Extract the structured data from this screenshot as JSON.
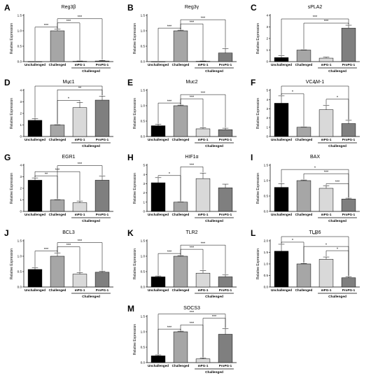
{
  "figure": {
    "categories": [
      "Unchallenged",
      "Challenged",
      "mPG-1",
      "ProPG-1"
    ],
    "group_label": "Challenged",
    "bar_colors": [
      "#000000",
      "#a6a6a6",
      "#d9d9d9",
      "#7f7f7f"
    ]
  },
  "chart_data": [
    {
      "letter": "A",
      "type": "bar",
      "title": "Reg3β",
      "ylabel": "Relative Expression",
      "ylim": [
        0,
        1.5
      ],
      "yticks": [
        0.0,
        0.5,
        1.0,
        1.5
      ],
      "tick_decimals": 1,
      "values": [
        0.0,
        1.0,
        0.01,
        0.02
      ],
      "errors": [
        0,
        0.05,
        0.01,
        0.02
      ],
      "significance": [
        {
          "from": 0,
          "to": 1,
          "label": "***"
        },
        {
          "from": 1,
          "to": 2,
          "label": "***"
        },
        {
          "from": 1,
          "to": 3,
          "label": "***"
        }
      ]
    },
    {
      "letter": "B",
      "type": "bar",
      "title": "Reg3γ",
      "ylabel": "Relative Expression",
      "ylim": [
        0,
        1.5
      ],
      "yticks": [
        0.0,
        0.5,
        1.0,
        1.5
      ],
      "tick_decimals": 1,
      "values": [
        0.0,
        1.0,
        0.01,
        0.28
      ],
      "errors": [
        0,
        0.02,
        0.01,
        0.14
      ],
      "significance": [
        {
          "from": 0,
          "to": 1,
          "label": "***"
        },
        {
          "from": 1,
          "to": 2,
          "label": "***"
        },
        {
          "from": 1,
          "to": 3,
          "label": "***"
        }
      ]
    },
    {
      "letter": "C",
      "type": "bar",
      "title": "sPLA2",
      "ylabel": "Relative Expression",
      "ylim": [
        0,
        4
      ],
      "yticks": [
        0,
        1,
        2,
        3,
        4
      ],
      "tick_decimals": 0,
      "values": [
        0.35,
        1.0,
        0.3,
        2.9
      ],
      "errors": [
        0.15,
        0.02,
        0.08,
        0.25
      ],
      "significance": [
        {
          "from": 1,
          "to": 3,
          "label": "***"
        },
        {
          "from": 0,
          "to": 3,
          "label": "***"
        }
      ]
    },
    {
      "letter": "D",
      "type": "bar",
      "title": "Muc1",
      "ylabel": "Relative Expression",
      "ylim": [
        0,
        4
      ],
      "yticks": [
        0,
        1,
        2,
        3,
        4
      ],
      "tick_decimals": 0,
      "values": [
        1.4,
        1.0,
        2.5,
        3.15
      ],
      "errors": [
        0.15,
        0.02,
        0.45,
        0.35
      ],
      "significance": [
        {
          "from": 1,
          "to": 2,
          "label": "*"
        },
        {
          "from": 1,
          "to": 3,
          "label": "**"
        },
        {
          "from": 0,
          "to": 3,
          "label": "*"
        }
      ]
    },
    {
      "letter": "E",
      "type": "bar",
      "title": "Muc2",
      "ylabel": "Relative Expression",
      "ylim": [
        0,
        1.5
      ],
      "yticks": [
        0.0,
        0.5,
        1.0,
        1.5
      ],
      "tick_decimals": 1,
      "values": [
        0.35,
        1.0,
        0.25,
        0.22
      ],
      "errors": [
        0.05,
        0.02,
        0.03,
        0.05
      ],
      "significance": [
        {
          "from": 0,
          "to": 1,
          "label": "***"
        },
        {
          "from": 1,
          "to": 2,
          "label": "***"
        },
        {
          "from": 1,
          "to": 3,
          "label": "***"
        }
      ]
    },
    {
      "letter": "F",
      "type": "bar",
      "title": "VCAM-1",
      "ylabel": "Relative Expression",
      "ylim": [
        0,
        5
      ],
      "yticks": [
        0,
        1,
        2,
        3,
        4,
        5
      ],
      "tick_decimals": 0,
      "values": [
        3.6,
        1.0,
        2.9,
        1.4
      ],
      "errors": [
        0.8,
        0.02,
        0.45,
        0.35
      ],
      "significance": [
        {
          "from": 0,
          "to": 1,
          "label": "*"
        },
        {
          "from": 2,
          "to": 3,
          "label": "*"
        },
        {
          "from": 0,
          "to": 3,
          "label": "*"
        }
      ]
    },
    {
      "letter": "G",
      "type": "bar",
      "title": "EGR1",
      "ylabel": "Relative Expression",
      "ylim": [
        0,
        4
      ],
      "yticks": [
        0,
        1,
        2,
        3,
        4
      ],
      "tick_decimals": 0,
      "values": [
        2.7,
        1.0,
        0.75,
        2.7
      ],
      "errors": [
        0.2,
        0.02,
        0.15,
        0.35
      ],
      "significance": [
        {
          "from": 0,
          "to": 1,
          "label": "**"
        },
        {
          "from": 0,
          "to": 2,
          "label": "***"
        },
        {
          "from": 1,
          "to": 3,
          "label": "***"
        }
      ]
    },
    {
      "letter": "H",
      "type": "bar",
      "title": "HIF1α",
      "ylabel": "Relative Expression",
      "ylim": [
        0,
        5
      ],
      "yticks": [
        0,
        1,
        2,
        3,
        4,
        5
      ],
      "tick_decimals": 0,
      "values": [
        3.1,
        1.0,
        3.55,
        2.55
      ],
      "errors": [
        0.55,
        0.02,
        0.6,
        0.4
      ],
      "significance": [
        {
          "from": 0,
          "to": 1,
          "label": "*"
        },
        {
          "from": 1,
          "to": 2,
          "label": "***"
        }
      ]
    },
    {
      "letter": "I",
      "type": "bar",
      "title": "BAX",
      "ylabel": "Relative Expression",
      "ylim": [
        0,
        1.5
      ],
      "yticks": [
        0.0,
        0.5,
        1.0,
        1.5
      ],
      "tick_decimals": 1,
      "values": [
        0.78,
        1.0,
        0.75,
        0.4
      ],
      "errors": [
        0.12,
        0.02,
        0.08,
        0.03
      ],
      "significance": [
        {
          "from": 2,
          "to": 3,
          "label": "***"
        },
        {
          "from": 1,
          "to": 3,
          "label": "***"
        },
        {
          "from": 0,
          "to": 3,
          "label": "*"
        }
      ]
    },
    {
      "letter": "J",
      "type": "bar",
      "title": "BCL3",
      "ylabel": "Relative Expression",
      "ylim": [
        0,
        1.5
      ],
      "yticks": [
        0.0,
        0.5,
        1.0,
        1.5
      ],
      "tick_decimals": 1,
      "values": [
        0.57,
        1.0,
        0.42,
        0.48
      ],
      "errors": [
        0.05,
        0.1,
        0.05,
        0.03
      ],
      "significance": [
        {
          "from": 0,
          "to": 1,
          "label": "***"
        },
        {
          "from": 1,
          "to": 2,
          "label": "***"
        },
        {
          "from": 1,
          "to": 3,
          "label": "***"
        }
      ]
    },
    {
      "letter": "K",
      "type": "bar",
      "title": "TLR2",
      "ylabel": "Relative Expression",
      "ylim": [
        0,
        1.5
      ],
      "yticks": [
        0.0,
        0.5,
        1.0,
        1.5
      ],
      "tick_decimals": 1,
      "values": [
        0.33,
        1.0,
        0.45,
        0.33
      ],
      "errors": [
        0.03,
        0.02,
        0.08,
        0.06
      ],
      "significance": [
        {
          "from": 0,
          "to": 1,
          "label": "***"
        },
        {
          "from": 1,
          "to": 2,
          "label": "***"
        },
        {
          "from": 1,
          "to": 3,
          "label": "***"
        }
      ]
    },
    {
      "letter": "L",
      "type": "bar",
      "title": "TLR6",
      "ylabel": "Relative Expression",
      "ylim": [
        0,
        2.0
      ],
      "yticks": [
        0.0,
        0.5,
        1.0,
        1.5,
        2.0
      ],
      "tick_decimals": 1,
      "values": [
        1.55,
        1.0,
        1.2,
        0.4
      ],
      "errors": [
        0.3,
        0.02,
        0.1,
        0.05
      ],
      "significance": [
        {
          "from": 0,
          "to": 1,
          "label": "*"
        },
        {
          "from": 2,
          "to": 3,
          "label": "*"
        },
        {
          "from": 1,
          "to": 3,
          "label": "*"
        },
        {
          "from": 0,
          "to": 3,
          "label": "***"
        }
      ]
    },
    {
      "letter": "M",
      "type": "bar",
      "title": "SOCS3",
      "ylabel": "Relative Expression",
      "ylim": [
        0,
        1.5
      ],
      "yticks": [
        0.0,
        0.5,
        1.0,
        1.5
      ],
      "tick_decimals": 1,
      "values": [
        0.22,
        1.0,
        0.12,
        0.92
      ],
      "errors": [
        0.03,
        0.02,
        0.03,
        0.18
      ],
      "significance": [
        {
          "from": 0,
          "to": 1,
          "label": "***"
        },
        {
          "from": 1,
          "to": 2,
          "label": "***"
        },
        {
          "from": 2,
          "to": 3,
          "label": "***"
        },
        {
          "from": 0,
          "to": 3,
          "label": "***"
        }
      ]
    }
  ]
}
